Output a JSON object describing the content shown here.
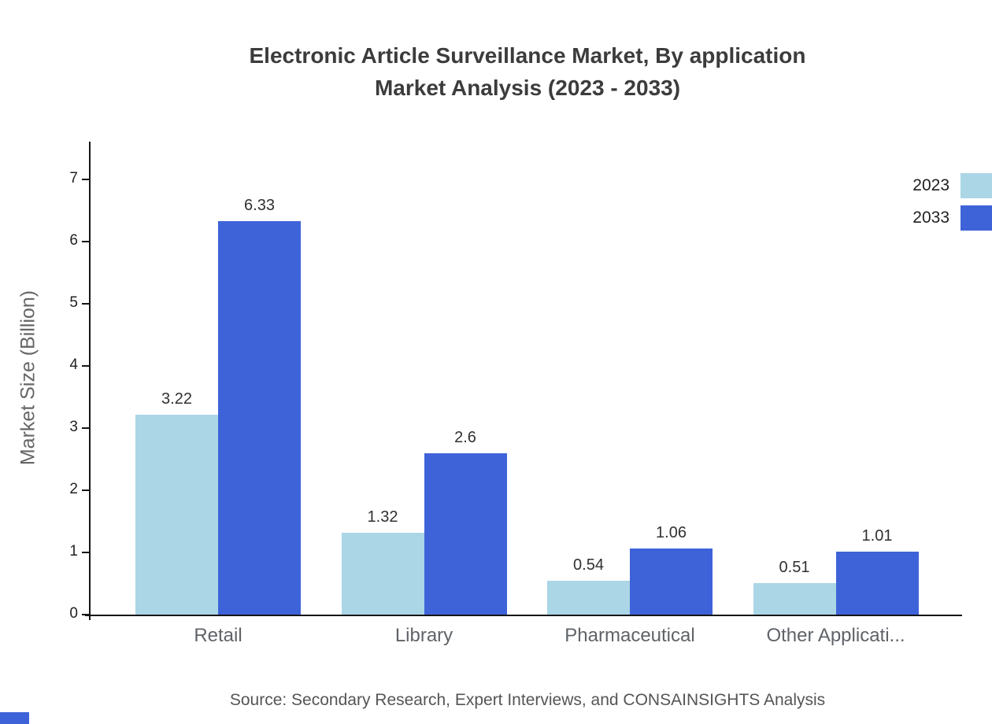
{
  "title": {
    "line1": "Electronic Article Surveillance Market, By application",
    "line2": "Market Analysis (2023 - 2033)"
  },
  "chart_data": {
    "type": "bar",
    "title": "Electronic Article Surveillance Market, By application Market Analysis (2023 - 2033)",
    "categories": [
      "Retail",
      "Library",
      "Pharmaceutical",
      "Other Applicati..."
    ],
    "series": [
      {
        "name": "2023",
        "color": "#aad6e6",
        "values": [
          3.22,
          1.32,
          0.54,
          0.51
        ]
      },
      {
        "name": "2033",
        "color": "#3e63d8",
        "values": [
          6.33,
          2.6,
          1.06,
          1.01
        ]
      }
    ],
    "xlabel": "",
    "ylabel": "Market Size (Billion)",
    "ylim": [
      0,
      7
    ],
    "yticks": [
      0,
      1,
      2,
      3,
      4,
      5,
      6,
      7
    ],
    "grid": false,
    "legend_position": "top-right"
  },
  "footer": {
    "source": "Source: Secondary Research, Expert Interviews, and CONSAINSIGHTS Analysis"
  }
}
